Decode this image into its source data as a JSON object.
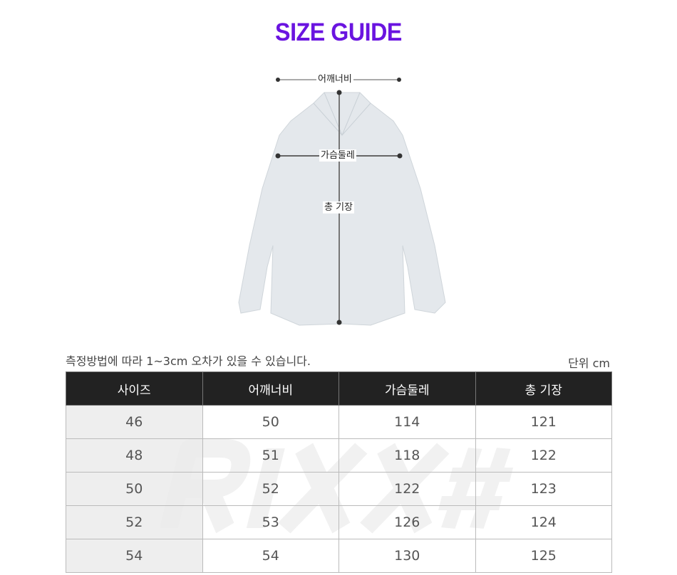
{
  "title": "SIZE GUIDE",
  "diagram": {
    "shoulder": "어깨너비",
    "chest": "가슴둘레",
    "length": "총 기장"
  },
  "note": "측정방법에 따라 1~3cm 오차가 있을 수 있습니다.",
  "unit": "단위 cm",
  "watermark": "RIXX#",
  "table": {
    "headers": [
      "사이즈",
      "어깨너비",
      "가슴둘레",
      "총 기장"
    ],
    "rows": [
      [
        "46",
        "50",
        "114",
        "121"
      ],
      [
        "48",
        "51",
        "118",
        "122"
      ],
      [
        "50",
        "52",
        "122",
        "123"
      ],
      [
        "52",
        "53",
        "126",
        "124"
      ],
      [
        "54",
        "54",
        "130",
        "125"
      ]
    ]
  },
  "colors": {
    "title": "#6a14e0",
    "header_bg": "#222222"
  }
}
